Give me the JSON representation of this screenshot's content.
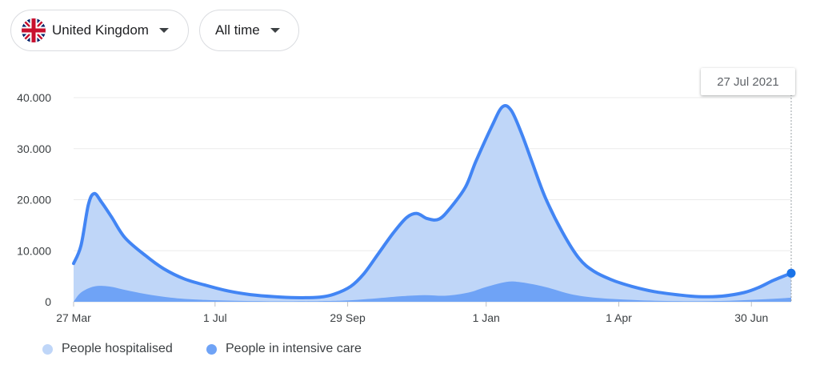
{
  "filters": {
    "country": "United Kingdom",
    "country_icon": "uk-flag-icon",
    "range": "All time",
    "dropdown_icon": "caret-down-icon"
  },
  "tooltip": {
    "date": "27 Jul 2021"
  },
  "colors": {
    "hospitalised_fill": "#bfd6f8",
    "hospitalised_line": "#4285f4",
    "icu_fill": "#6fa3f6",
    "marker": "#1a73e8"
  },
  "chart_data": {
    "type": "area",
    "title": "",
    "xlabel": "",
    "ylabel": "",
    "ylim": [
      0,
      40000
    ],
    "y_ticks": [
      "0",
      "10.000",
      "20.000",
      "30.000",
      "40.000"
    ],
    "y_tick_values": [
      0,
      10000,
      20000,
      30000,
      40000
    ],
    "x_ticks": [
      "27 Mar",
      "1 Jul",
      "29 Sep",
      "1 Jan",
      "1 Apr",
      "30 Jun"
    ],
    "x_tick_dates": [
      "2020-03-27",
      "2020-07-01",
      "2020-09-29",
      "2021-01-01",
      "2021-04-01",
      "2021-06-30"
    ],
    "x_range": [
      "2020-03-27",
      "2021-07-27"
    ],
    "grid": true,
    "legend_position": "bottom-left",
    "series": [
      {
        "name": "People hospitalised",
        "points": [
          [
            "2020-03-27",
            7500
          ],
          [
            "2020-04-01",
            11000
          ],
          [
            "2020-04-06",
            19000
          ],
          [
            "2020-04-10",
            21200
          ],
          [
            "2020-04-15",
            19500
          ],
          [
            "2020-04-22",
            16500
          ],
          [
            "2020-05-01",
            12500
          ],
          [
            "2020-05-15",
            9000
          ],
          [
            "2020-05-27",
            6500
          ],
          [
            "2020-06-10",
            4500
          ],
          [
            "2020-06-25",
            3200
          ],
          [
            "2020-07-10",
            2100
          ],
          [
            "2020-07-25",
            1400
          ],
          [
            "2020-08-10",
            1000
          ],
          [
            "2020-08-25",
            800
          ],
          [
            "2020-09-10",
            900
          ],
          [
            "2020-09-20",
            1500
          ],
          [
            "2020-10-01",
            3000
          ],
          [
            "2020-10-10",
            5500
          ],
          [
            "2020-10-20",
            9500
          ],
          [
            "2020-10-30",
            13500
          ],
          [
            "2020-11-08",
            16500
          ],
          [
            "2020-11-15",
            17300
          ],
          [
            "2020-11-22",
            16300
          ],
          [
            "2020-11-30",
            16200
          ],
          [
            "2020-12-08",
            18500
          ],
          [
            "2020-12-18",
            22500
          ],
          [
            "2020-12-25",
            27500
          ],
          [
            "2021-01-05",
            34500
          ],
          [
            "2021-01-12",
            38200
          ],
          [
            "2021-01-18",
            37500
          ],
          [
            "2021-01-25",
            33000
          ],
          [
            "2021-02-01",
            27500
          ],
          [
            "2021-02-10",
            20500
          ],
          [
            "2021-02-22",
            13500
          ],
          [
            "2021-03-05",
            8500
          ],
          [
            "2021-03-15",
            6000
          ],
          [
            "2021-03-28",
            4200
          ],
          [
            "2021-04-10",
            3000
          ],
          [
            "2021-04-25",
            2000
          ],
          [
            "2021-05-10",
            1400
          ],
          [
            "2021-05-25",
            1000
          ],
          [
            "2021-06-10",
            1100
          ],
          [
            "2021-06-25",
            1800
          ],
          [
            "2021-07-05",
            2800
          ],
          [
            "2021-07-15",
            4200
          ],
          [
            "2021-07-27",
            5600
          ]
        ]
      },
      {
        "name": "People in intensive care",
        "points": [
          [
            "2020-03-27",
            0
          ],
          [
            "2020-04-01",
            1800
          ],
          [
            "2020-04-10",
            3000
          ],
          [
            "2020-04-20",
            3000
          ],
          [
            "2020-05-01",
            2300
          ],
          [
            "2020-05-15",
            1500
          ],
          [
            "2020-06-01",
            800
          ],
          [
            "2020-06-20",
            400
          ],
          [
            "2020-07-15",
            200
          ],
          [
            "2020-08-15",
            100
          ],
          [
            "2020-09-15",
            150
          ],
          [
            "2020-10-01",
            300
          ],
          [
            "2020-10-20",
            700
          ],
          [
            "2020-11-05",
            1100
          ],
          [
            "2020-11-20",
            1300
          ],
          [
            "2020-12-05",
            1200
          ],
          [
            "2020-12-20",
            1800
          ],
          [
            "2021-01-01",
            2900
          ],
          [
            "2021-01-15",
            3900
          ],
          [
            "2021-01-25",
            3800
          ],
          [
            "2021-02-10",
            2900
          ],
          [
            "2021-03-01",
            1400
          ],
          [
            "2021-03-20",
            700
          ],
          [
            "2021-04-15",
            300
          ],
          [
            "2021-05-15",
            120
          ],
          [
            "2021-06-15",
            200
          ],
          [
            "2021-07-10",
            500
          ],
          [
            "2021-07-27",
            800
          ]
        ]
      }
    ]
  }
}
